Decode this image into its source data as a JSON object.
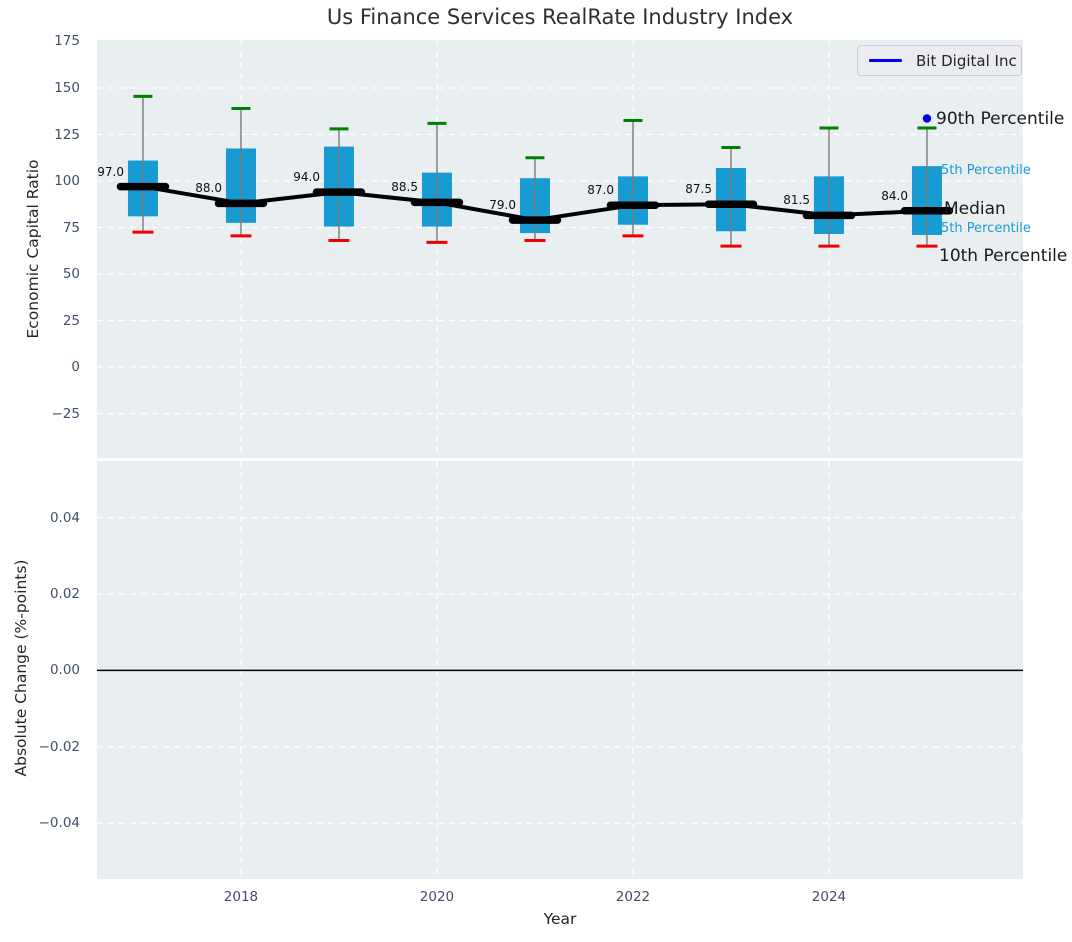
{
  "title": "Us Finance Services RealRate Industry Index",
  "legend": {
    "label": "Bit Digital Inc",
    "line_color": "#0000ee",
    "position": "upper right"
  },
  "colors": {
    "plot_bg": "#e9eef0",
    "grid": "#ffffff",
    "box_fill": "#189bd3",
    "whisker_line": "#7a7a7a",
    "cap_high": "#008000",
    "cap_low": "#f00000",
    "median_line": "#000000",
    "company_marker": "#0000ee",
    "tick_text": "#41506a",
    "text": "#262626",
    "percentile_label_blue": "#1a9cd3"
  },
  "chart_data": [
    {
      "type": "boxplot",
      "title": "Us Finance Services RealRate Industry Index",
      "ylabel": "Economic Capital Ratio",
      "x": [
        2017,
        2018,
        2019,
        2020,
        2021,
        2022,
        2023,
        2024,
        2025
      ],
      "series": {
        "whisker_high_90th": [
          145.5,
          139.0,
          128.0,
          131.0,
          112.5,
          132.5,
          118.0,
          128.5,
          128.5
        ],
        "q3_75th": [
          111.0,
          117.5,
          118.5,
          104.5,
          101.5,
          102.5,
          107.0,
          102.5,
          108.0
        ],
        "median": [
          97.0,
          88.0,
          94.0,
          88.5,
          79.0,
          87.0,
          87.5,
          81.5,
          84.0
        ],
        "q1_25th": [
          81.0,
          77.5,
          75.5,
          75.5,
          72.0,
          76.5,
          73.0,
          71.5,
          71.0
        ],
        "whisker_low_10th": [
          72.5,
          70.5,
          68.0,
          67.0,
          68.0,
          70.5,
          65.0,
          65.0,
          65.0
        ]
      },
      "median_labels": [
        "97.0",
        "88.0",
        "94.0",
        "88.5",
        "79.0",
        "87.0",
        "87.5",
        "81.5",
        "84.0"
      ],
      "company_point": {
        "x": 2025,
        "y": 133.6
      },
      "yticks": {
        "values": [
          175,
          150,
          125,
          100,
          75,
          50,
          25,
          0,
          -25
        ],
        "labels": [
          "175",
          "150",
          "125",
          "100",
          "75",
          "50",
          "25",
          "0",
          "−25"
        ]
      },
      "ylim": [
        -48.9,
        175.8
      ],
      "xlim": [
        2016.531,
        2025.98
      ],
      "grid": true,
      "legend_position": "upper right",
      "annotations": [
        {
          "id": "p90",
          "text": "90th Percentile",
          "value": 133.6,
          "style": "large",
          "color": "#1a1a1a",
          "marker": "blue-dot"
        },
        {
          "id": "p75",
          "text": "5th Percentile",
          "value": 105.5,
          "style": "small",
          "color": "#1a9cd3"
        },
        {
          "id": "median",
          "text": "Median",
          "value": 84.8,
          "style": "large",
          "color": "#1a1a1a"
        },
        {
          "id": "p25",
          "text": "5th Percentile",
          "value": 74.5,
          "style": "small",
          "color": "#1a9cd3"
        },
        {
          "id": "p10",
          "text": "10th Percentile",
          "value": 59.8,
          "style": "large",
          "color": "#1a1a1a"
        }
      ]
    },
    {
      "type": "line",
      "ylabel": "Absolute Change (%-points)",
      "xlabel": "Year",
      "series": [],
      "zero_line": 0.0,
      "yticks": {
        "values": [
          0.04,
          0.02,
          0.0,
          -0.02,
          -0.04
        ],
        "labels": [
          "0.04",
          "0.02",
          "0.00",
          "−0.02",
          "−0.04"
        ]
      },
      "xticks": {
        "values": [
          2018,
          2020,
          2022,
          2024
        ],
        "labels": [
          "2018",
          "2020",
          "2022",
          "2024"
        ]
      },
      "ylim": [
        -0.0546,
        0.0548
      ],
      "xlim": [
        2016.531,
        2025.98
      ],
      "grid": true
    }
  ]
}
